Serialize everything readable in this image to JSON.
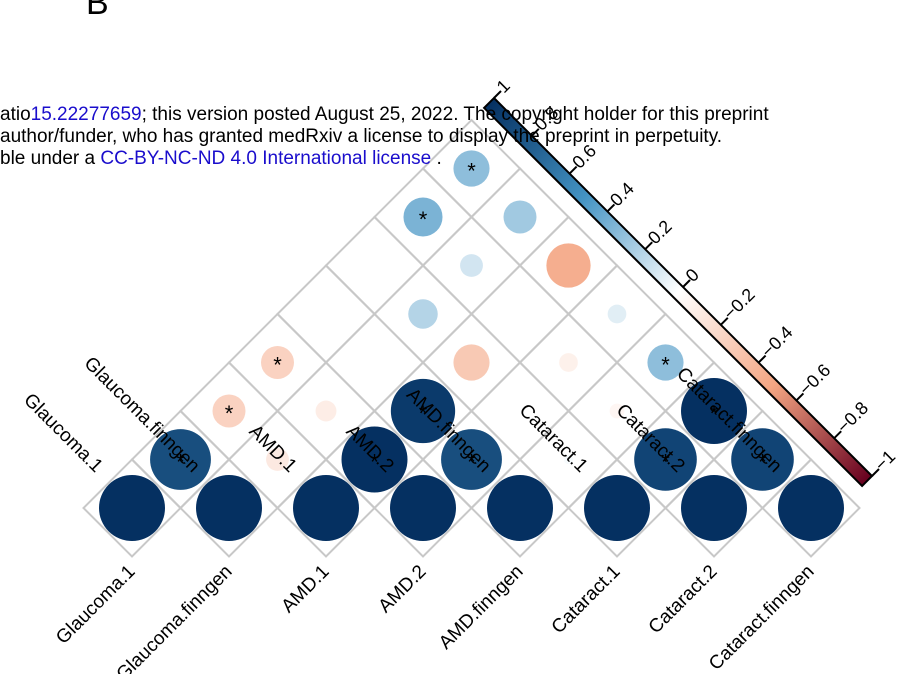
{
  "panel_letter": "B",
  "preprint_notice": {
    "line1_prefix": "atio",
    "line1_link": "15.22277659",
    "line1_rest": "; this version posted August 25, 2022. The copyright holder for this preprint",
    "line2": "author/funder, who has granted medRxiv a license to display the preprint in perpetuity.",
    "line3_prefix": "ble under a ",
    "line3_link": "CC-BY-NC-ND 4.0 International license",
    "line3_suffix": " ."
  },
  "colors": {
    "positive_strong": "#053061",
    "positive_mid": "#4393c3",
    "neutral": "#ffffff",
    "negative_mid": "#f4a582",
    "negative_strong": "#67001f",
    "grid": "#c8c8c8",
    "link": "#1a0dcc"
  },
  "chart_data": {
    "type": "heatmap",
    "subtype": "correlation-lower-triangle",
    "variables": [
      "Glaucoma.1",
      "Glaucoma.finngen",
      "AMD.1",
      "AMD.2",
      "AMD.finngen",
      "Cataract.1",
      "Cataract.2",
      "Cataract.finngen"
    ],
    "significance_marker": "*",
    "colorbar": {
      "ticks": [
        1,
        0.8,
        0.6,
        0.4,
        0.2,
        0,
        -0.2,
        -0.4,
        -0.6,
        -0.8,
        -1
      ],
      "tick_labels": [
        "1",
        "0.8",
        "0.6",
        "0.4",
        "0.2",
        "0",
        "−0.2",
        "−0.4",
        "−0.6",
        "−0.8",
        "−1"
      ],
      "range": [
        -1,
        1
      ]
    },
    "cells": [
      {
        "i": 0,
        "j": 0,
        "r": 1.0,
        "sig": false
      },
      {
        "i": 1,
        "j": 1,
        "r": 1.0,
        "sig": false
      },
      {
        "i": 2,
        "j": 2,
        "r": 1.0,
        "sig": false
      },
      {
        "i": 3,
        "j": 3,
        "r": 1.0,
        "sig": false
      },
      {
        "i": 4,
        "j": 4,
        "r": 1.0,
        "sig": false
      },
      {
        "i": 5,
        "j": 5,
        "r": 1.0,
        "sig": false
      },
      {
        "i": 6,
        "j": 6,
        "r": 1.0,
        "sig": false
      },
      {
        "i": 7,
        "j": 7,
        "r": 1.0,
        "sig": false
      },
      {
        "i": 0,
        "j": 1,
        "r": 0.85,
        "sig": true
      },
      {
        "i": 1,
        "j": 2,
        "r": -0.12,
        "sig": false
      },
      {
        "i": 2,
        "j": 3,
        "r": 1.0,
        "sig": true
      },
      {
        "i": 3,
        "j": 4,
        "r": 0.85,
        "sig": true
      },
      {
        "i": 4,
        "j": 5,
        "r": 0.02,
        "sig": false
      },
      {
        "i": 5,
        "j": 6,
        "r": 0.9,
        "sig": true
      },
      {
        "i": 6,
        "j": 7,
        "r": 0.9,
        "sig": true
      },
      {
        "i": 0,
        "j": 2,
        "r": -0.25,
        "sig": true
      },
      {
        "i": 1,
        "j": 3,
        "r": -0.1,
        "sig": false
      },
      {
        "i": 2,
        "j": 4,
        "r": 0.95,
        "sig": true
      },
      {
        "i": 3,
        "j": 5,
        "r": 0.0,
        "sig": false
      },
      {
        "i": 4,
        "j": 6,
        "r": -0.05,
        "sig": false
      },
      {
        "i": 5,
        "j": 7,
        "r": 1.0,
        "sig": true
      },
      {
        "i": 0,
        "j": 3,
        "r": -0.25,
        "sig": true
      },
      {
        "i": 1,
        "j": 4,
        "r": 0.0,
        "sig": false
      },
      {
        "i": 2,
        "j": 5,
        "r": -0.3,
        "sig": false
      },
      {
        "i": 3,
        "j": 6,
        "r": -0.08,
        "sig": false
      },
      {
        "i": 4,
        "j": 7,
        "r": 0.3,
        "sig": true
      },
      {
        "i": 0,
        "j": 4,
        "r": 0.0,
        "sig": false
      },
      {
        "i": 1,
        "j": 5,
        "r": 0.2,
        "sig": false
      },
      {
        "i": 2,
        "j": 6,
        "r": 0.0,
        "sig": false
      },
      {
        "i": 3,
        "j": 7,
        "r": 0.08,
        "sig": false
      },
      {
        "i": 0,
        "j": 5,
        "r": 0.0,
        "sig": false
      },
      {
        "i": 1,
        "j": 6,
        "r": 0.12,
        "sig": false
      },
      {
        "i": 2,
        "j": 7,
        "r": -0.45,
        "sig": false
      },
      {
        "i": 0,
        "j": 6,
        "r": 0.35,
        "sig": true
      },
      {
        "i": 1,
        "j": 7,
        "r": 0.25,
        "sig": false
      },
      {
        "i": 0,
        "j": 7,
        "r": 0.3,
        "sig": true
      }
    ]
  }
}
